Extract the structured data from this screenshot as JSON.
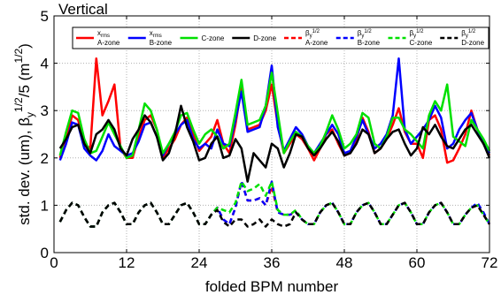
{
  "chart_data": {
    "type": "line",
    "title": "Vertical",
    "xlabel": "folded BPM number",
    "ylabel": {
      "main": "std. dev. (um), β",
      "sub": "y",
      "sup": "1/2",
      "tail": "/5 (m",
      "tail_sup": "1/2",
      "tail_end": ")"
    },
    "xlim": [
      0,
      72
    ],
    "ylim": [
      0,
      5
    ],
    "xticks": [
      0,
      12,
      24,
      36,
      48,
      60,
      72
    ],
    "yticks": [
      0,
      1,
      2,
      3,
      4,
      5
    ],
    "grid": true,
    "legend_placement": "top",
    "series": [
      {
        "label_main": "x",
        "label_sub": "rms",
        "label_zone": "A-zone",
        "color": "#ff0000",
        "dash": "solid",
        "x": [
          1,
          2,
          3,
          4,
          5,
          6,
          7,
          8,
          9,
          10,
          11,
          12,
          13,
          14,
          15,
          16,
          17,
          18,
          19,
          20,
          21,
          22,
          23,
          24,
          25,
          26,
          27,
          28,
          29,
          30,
          31,
          32,
          33,
          34,
          35,
          36,
          37,
          38,
          39,
          40,
          41,
          42,
          43,
          44,
          45,
          46,
          47,
          48,
          49,
          50,
          51,
          52,
          53,
          54,
          55,
          56,
          57,
          58,
          59,
          60,
          61,
          62,
          63,
          64,
          65,
          66,
          67,
          68,
          69,
          70,
          71,
          72
        ],
        "y": [
          2.0,
          2.4,
          2.9,
          2.8,
          2.3,
          2.2,
          4.1,
          2.9,
          3.2,
          3.55,
          2.2,
          2.0,
          2.0,
          2.45,
          2.8,
          2.9,
          2.6,
          2.0,
          2.2,
          2.4,
          2.7,
          2.85,
          2.5,
          2.15,
          2.3,
          2.45,
          2.8,
          2.3,
          2.1,
          2.7,
          3.5,
          2.6,
          2.65,
          2.7,
          3.0,
          3.55,
          2.7,
          2.1,
          2.3,
          2.5,
          2.4,
          2.2,
          1.95,
          2.2,
          2.5,
          2.6,
          2.3,
          2.05,
          2.1,
          2.4,
          2.85,
          2.55,
          2.1,
          2.2,
          2.4,
          2.7,
          3.05,
          2.55,
          2.3,
          2.3,
          2.0,
          2.8,
          2.9,
          2.6,
          1.9,
          1.95,
          2.2,
          2.5,
          3.0,
          2.6,
          2.3,
          2.05
        ]
      },
      {
        "label_main": "x",
        "label_sub": "rms",
        "label_zone": "B-zone",
        "color": "#0000ff",
        "dash": "solid",
        "x": [
          1,
          2,
          3,
          4,
          5,
          6,
          7,
          8,
          9,
          10,
          11,
          12,
          13,
          14,
          15,
          16,
          17,
          18,
          19,
          20,
          21,
          22,
          23,
          24,
          25,
          26,
          27,
          28,
          29,
          30,
          31,
          32,
          33,
          34,
          35,
          36,
          37,
          38,
          39,
          40,
          41,
          42,
          43,
          44,
          45,
          46,
          47,
          48,
          49,
          50,
          51,
          52,
          53,
          54,
          55,
          56,
          57,
          58,
          59,
          60,
          61,
          62,
          63,
          64,
          65,
          66,
          67,
          68,
          69,
          70,
          71,
          72
        ],
        "y": [
          1.95,
          2.3,
          2.75,
          2.7,
          2.2,
          2.05,
          1.95,
          2.15,
          2.5,
          2.25,
          2.15,
          2.05,
          2.1,
          2.35,
          2.7,
          2.75,
          2.45,
          2.05,
          2.3,
          2.5,
          2.7,
          2.8,
          2.4,
          2.2,
          2.3,
          2.2,
          2.6,
          2.3,
          2.25,
          2.8,
          3.4,
          2.55,
          2.6,
          2.65,
          3.1,
          3.95,
          2.65,
          2.15,
          2.4,
          2.65,
          2.5,
          2.25,
          2.1,
          2.3,
          2.5,
          2.7,
          2.5,
          2.1,
          2.15,
          2.45,
          2.8,
          2.5,
          2.2,
          2.3,
          2.5,
          2.9,
          4.1,
          2.6,
          2.3,
          2.45,
          2.6,
          2.8,
          3.1,
          2.85,
          2.2,
          2.3,
          2.6,
          2.8,
          2.95,
          2.6,
          2.3,
          2.1
        ]
      },
      {
        "label_main": "",
        "label_sub": "",
        "label_zone": "C-zone",
        "color": "#00e000",
        "dash": "solid",
        "x": [
          1,
          2,
          3,
          4,
          5,
          6,
          7,
          8,
          9,
          10,
          11,
          12,
          13,
          14,
          15,
          16,
          17,
          18,
          19,
          20,
          21,
          22,
          23,
          24,
          25,
          26,
          27,
          28,
          29,
          30,
          31,
          32,
          33,
          34,
          35,
          36,
          37,
          38,
          39,
          40,
          41,
          42,
          43,
          44,
          45,
          46,
          47,
          48,
          49,
          50,
          51,
          52,
          53,
          54,
          55,
          56,
          57,
          58,
          59,
          60,
          61,
          62,
          63,
          64,
          65,
          66,
          67,
          68,
          69,
          70,
          71,
          72
        ],
        "y": [
          2.05,
          2.55,
          3.0,
          2.95,
          2.4,
          2.1,
          2.15,
          2.45,
          2.75,
          2.5,
          2.25,
          2.0,
          2.05,
          2.6,
          3.15,
          3.0,
          2.6,
          2.1,
          2.3,
          2.55,
          2.9,
          2.95,
          2.6,
          2.3,
          2.5,
          2.6,
          2.45,
          2.2,
          2.3,
          2.95,
          3.65,
          2.7,
          2.75,
          2.8,
          3.1,
          3.8,
          2.95,
          2.1,
          2.35,
          2.55,
          2.45,
          2.25,
          2.1,
          2.25,
          2.55,
          2.9,
          2.6,
          2.2,
          2.3,
          2.5,
          2.95,
          2.85,
          2.3,
          2.2,
          2.45,
          2.85,
          2.85,
          2.6,
          2.5,
          2.35,
          2.2,
          2.9,
          3.2,
          3.0,
          3.55,
          2.45,
          2.35,
          2.25,
          2.8,
          2.6,
          2.4,
          2.15
        ]
      },
      {
        "label_main": "",
        "label_sub": "",
        "label_zone": "D-zone",
        "color": "#000000",
        "dash": "solid",
        "x": [
          1,
          2,
          3,
          4,
          5,
          6,
          7,
          8,
          9,
          10,
          11,
          12,
          13,
          14,
          15,
          16,
          17,
          18,
          19,
          20,
          21,
          22,
          23,
          24,
          25,
          26,
          27,
          28,
          29,
          30,
          31,
          32,
          33,
          34,
          35,
          36,
          37,
          38,
          39,
          40,
          41,
          42,
          43,
          44,
          45,
          46,
          47,
          48,
          49,
          50,
          51,
          52,
          53,
          54,
          55,
          56,
          57,
          58,
          59,
          60,
          61,
          62,
          63,
          64,
          65,
          66,
          67,
          68,
          69,
          70,
          71,
          72
        ],
        "y": [
          2.2,
          2.4,
          2.65,
          2.7,
          2.3,
          2.1,
          2.5,
          2.6,
          2.8,
          2.6,
          2.2,
          2.05,
          2.4,
          2.6,
          2.9,
          2.75,
          2.45,
          1.95,
          2.1,
          2.5,
          3.1,
          2.65,
          2.35,
          1.95,
          2.0,
          2.3,
          2.45,
          2.0,
          2.05,
          2.4,
          2.2,
          1.5,
          2.1,
          1.95,
          1.8,
          2.3,
          2.2,
          1.8,
          2.1,
          2.5,
          2.45,
          2.2,
          2.05,
          2.2,
          2.4,
          2.55,
          2.35,
          2.05,
          2.1,
          2.3,
          2.6,
          2.5,
          2.1,
          2.2,
          2.4,
          2.55,
          2.6,
          2.3,
          2.05,
          2.2,
          2.65,
          2.5,
          2.7,
          2.45,
          2.25,
          2.2,
          2.4,
          2.6,
          2.7,
          2.5,
          2.3,
          2.0
        ]
      },
      {
        "label_main": "β",
        "label_sub": "y",
        "label_sup": "1/2",
        "label_zone": "A-zone",
        "color": "#ff0000",
        "dash": "dashed",
        "x": [
          1,
          2,
          3,
          4,
          5,
          6,
          7,
          8,
          9,
          10,
          11,
          12,
          13,
          14,
          15,
          16,
          17,
          18,
          19,
          20,
          21,
          22,
          23,
          24,
          25,
          26,
          27,
          28,
          29,
          30,
          31,
          32,
          33,
          34,
          35,
          36,
          37,
          38,
          39,
          40,
          41,
          42,
          43,
          44,
          45,
          46,
          47,
          48,
          49,
          50,
          51,
          52,
          53,
          54,
          55,
          56,
          57,
          58,
          59,
          60,
          61,
          62,
          63,
          64,
          65,
          66,
          67,
          68,
          69,
          70,
          71,
          72
        ],
        "y": [
          0.65,
          0.9,
          1.05,
          1.0,
          0.75,
          0.55,
          0.55,
          0.85,
          1.0,
          1.05,
          0.85,
          0.6,
          0.6,
          0.85,
          1.0,
          1.05,
          0.85,
          0.6,
          0.6,
          0.8,
          1.0,
          1.05,
          0.85,
          0.6,
          0.6,
          0.8,
          0.95,
          0.7,
          0.6,
          0.95,
          1.5,
          1.1,
          1.1,
          1.15,
          1.0,
          1.4,
          0.85,
          0.8,
          0.8,
          0.85,
          0.7,
          0.6,
          0.6,
          0.85,
          1.0,
          1.05,
          0.85,
          0.6,
          0.6,
          0.85,
          1.0,
          1.05,
          0.85,
          0.6,
          0.6,
          0.8,
          1.0,
          1.05,
          0.85,
          0.6,
          0.6,
          0.85,
          1.0,
          1.05,
          0.85,
          0.6,
          0.6,
          0.8,
          0.95,
          1.0,
          0.8,
          0.6
        ]
      },
      {
        "label_main": "β",
        "label_sub": "y",
        "label_sup": "1/2",
        "label_zone": "B-zone",
        "color": "#0000ff",
        "dash": "dashed",
        "x": [
          1,
          2,
          3,
          4,
          5,
          6,
          7,
          8,
          9,
          10,
          11,
          12,
          13,
          14,
          15,
          16,
          17,
          18,
          19,
          20,
          21,
          22,
          23,
          24,
          25,
          26,
          27,
          28,
          29,
          30,
          31,
          32,
          33,
          34,
          35,
          36,
          37,
          38,
          39,
          40,
          41,
          42,
          43,
          44,
          45,
          46,
          47,
          48,
          49,
          50,
          51,
          52,
          53,
          54,
          55,
          56,
          57,
          58,
          59,
          60,
          61,
          62,
          63,
          64,
          65,
          66,
          67,
          68,
          69,
          70,
          71,
          72
        ],
        "y": [
          0.65,
          0.9,
          1.05,
          1.0,
          0.75,
          0.55,
          0.55,
          0.85,
          1.0,
          1.05,
          0.85,
          0.6,
          0.6,
          0.85,
          1.0,
          1.05,
          0.85,
          0.6,
          0.6,
          0.8,
          1.0,
          1.05,
          0.85,
          0.6,
          0.6,
          0.8,
          0.95,
          0.7,
          0.6,
          0.95,
          1.5,
          1.1,
          1.1,
          1.15,
          1.0,
          1.5,
          0.85,
          0.8,
          0.8,
          0.85,
          0.7,
          0.6,
          0.6,
          0.85,
          1.0,
          1.05,
          0.85,
          0.6,
          0.6,
          0.85,
          1.0,
          1.05,
          0.85,
          0.6,
          0.6,
          0.8,
          1.0,
          1.05,
          0.85,
          0.6,
          0.6,
          0.85,
          1.0,
          1.05,
          0.85,
          0.6,
          0.6,
          0.8,
          0.95,
          1.05,
          0.85,
          0.6
        ]
      },
      {
        "label_main": "β",
        "label_sub": "y",
        "label_sup": "1/2",
        "label_zone": "C-zone",
        "color": "#00e000",
        "dash": "dashed",
        "x": [
          1,
          2,
          3,
          4,
          5,
          6,
          7,
          8,
          9,
          10,
          11,
          12,
          13,
          14,
          15,
          16,
          17,
          18,
          19,
          20,
          21,
          22,
          23,
          24,
          25,
          26,
          27,
          28,
          29,
          30,
          31,
          32,
          33,
          34,
          35,
          36,
          37,
          38,
          39,
          40,
          41,
          42,
          43,
          44,
          45,
          46,
          47,
          48,
          49,
          50,
          51,
          52,
          53,
          54,
          55,
          56,
          57,
          58,
          59,
          60,
          61,
          62,
          63,
          64,
          65,
          66,
          67,
          68,
          69,
          70,
          71,
          72
        ],
        "y": [
          0.65,
          0.9,
          1.05,
          1.0,
          0.75,
          0.55,
          0.55,
          0.85,
          1.0,
          1.05,
          0.85,
          0.6,
          0.6,
          0.85,
          1.0,
          1.05,
          0.85,
          0.6,
          0.6,
          0.8,
          1.0,
          1.05,
          0.85,
          0.6,
          0.6,
          0.8,
          0.95,
          0.9,
          0.85,
          1.05,
          1.5,
          1.3,
          1.35,
          1.45,
          1.2,
          1.5,
          0.9,
          0.8,
          0.8,
          0.9,
          0.7,
          0.6,
          0.6,
          0.85,
          1.0,
          1.05,
          0.85,
          0.6,
          0.6,
          0.85,
          1.0,
          1.05,
          0.85,
          0.6,
          0.6,
          0.8,
          1.0,
          1.05,
          0.85,
          0.6,
          0.6,
          0.85,
          1.0,
          1.05,
          0.85,
          0.6,
          0.6,
          0.8,
          0.95,
          1.0,
          0.8,
          0.6
        ]
      },
      {
        "label_main": "β",
        "label_sub": "y",
        "label_sup": "1/2",
        "label_zone": "D-zone",
        "color": "#000000",
        "dash": "dashed",
        "x": [
          1,
          2,
          3,
          4,
          5,
          6,
          7,
          8,
          9,
          10,
          11,
          12,
          13,
          14,
          15,
          16,
          17,
          18,
          19,
          20,
          21,
          22,
          23,
          24,
          25,
          26,
          27,
          28,
          29,
          30,
          31,
          32,
          33,
          34,
          35,
          36,
          37,
          38,
          39,
          40,
          41,
          42,
          43,
          44,
          45,
          46,
          47,
          48,
          49,
          50,
          51,
          52,
          53,
          54,
          55,
          56,
          57,
          58,
          59,
          60,
          61,
          62,
          63,
          64,
          65,
          66,
          67,
          68,
          69,
          70,
          71,
          72
        ],
        "y": [
          0.65,
          0.9,
          1.05,
          1.0,
          0.75,
          0.55,
          0.55,
          0.85,
          1.0,
          1.05,
          0.85,
          0.6,
          0.6,
          0.85,
          1.0,
          1.05,
          0.85,
          0.6,
          0.6,
          0.8,
          1.0,
          1.05,
          0.85,
          0.6,
          0.6,
          0.8,
          0.9,
          0.65,
          0.55,
          0.7,
          0.7,
          0.55,
          0.6,
          0.7,
          0.55,
          0.7,
          0.6,
          0.55,
          0.6,
          0.85,
          0.7,
          0.6,
          0.6,
          0.85,
          1.0,
          1.05,
          0.85,
          0.6,
          0.6,
          0.85,
          1.0,
          1.05,
          0.85,
          0.6,
          0.6,
          0.8,
          1.0,
          1.05,
          0.85,
          0.6,
          0.6,
          0.85,
          1.0,
          1.05,
          0.85,
          0.6,
          0.6,
          0.8,
          0.95,
          1.0,
          0.8,
          0.6
        ]
      }
    ]
  }
}
